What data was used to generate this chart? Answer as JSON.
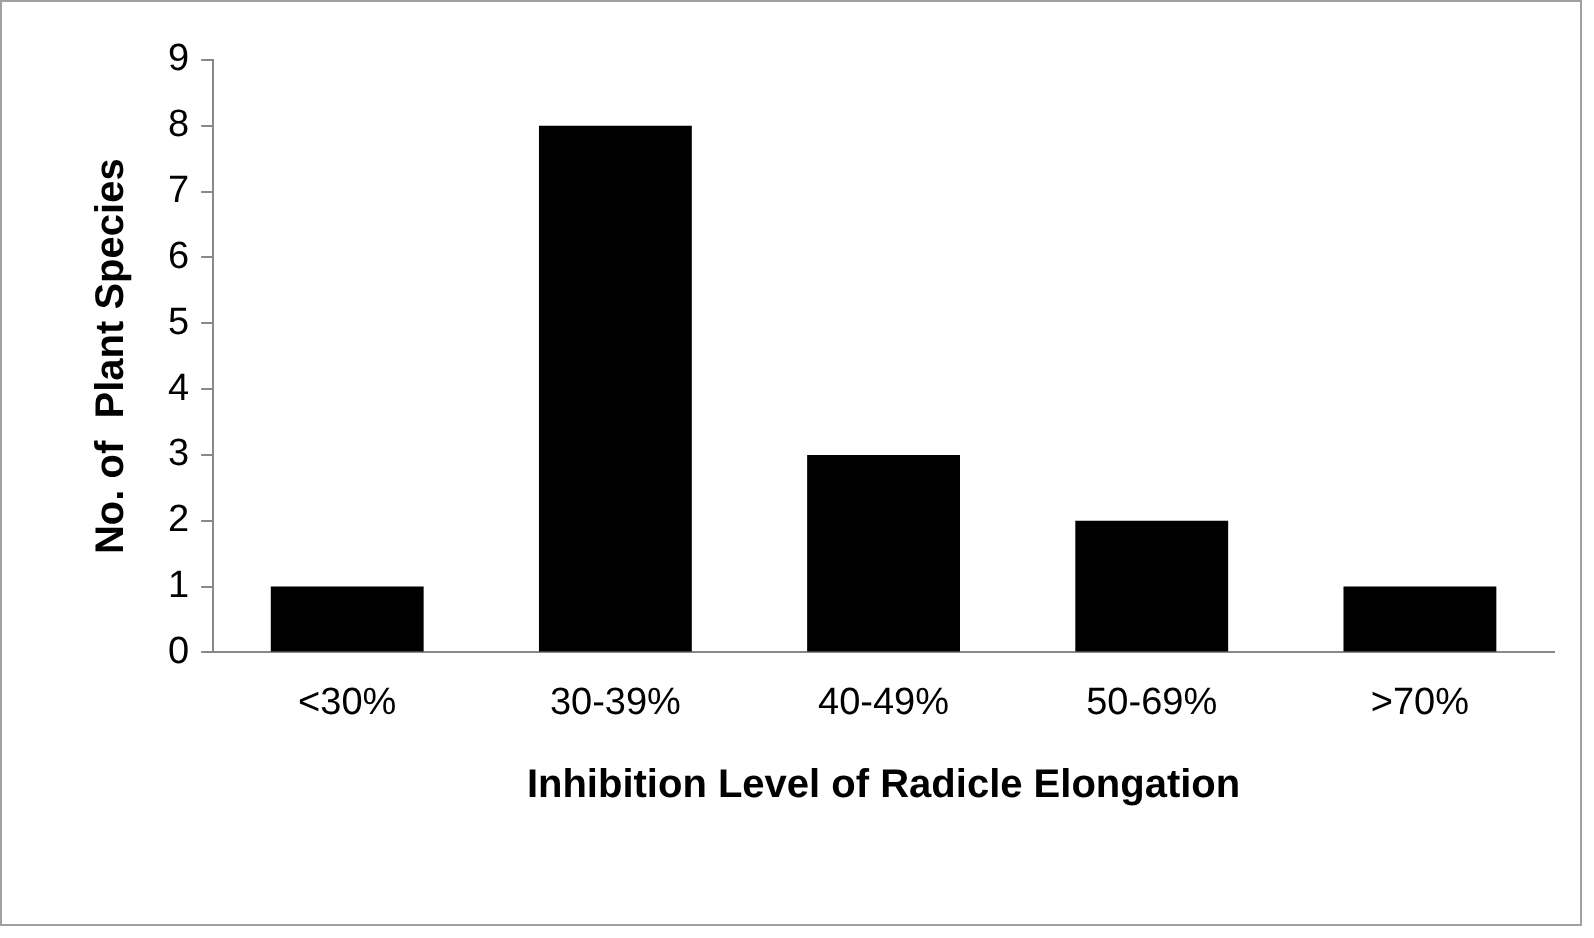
{
  "chart_data": {
    "type": "bar",
    "xlabel": "Inhibition Level of Radicle Elongation",
    "ylabel": "No. of  Plant Species",
    "categories": [
      "<30%",
      "30-39%",
      "40-49%",
      "50-69%",
      ">70%"
    ],
    "values": [
      1,
      8,
      3,
      2,
      1
    ],
    "color": "#000000",
    "ylim": [
      0,
      9
    ],
    "yticks": [
      0,
      1,
      2,
      3,
      4,
      5,
      6,
      7,
      8,
      9
    ],
    "grid": false,
    "legend": false
  }
}
